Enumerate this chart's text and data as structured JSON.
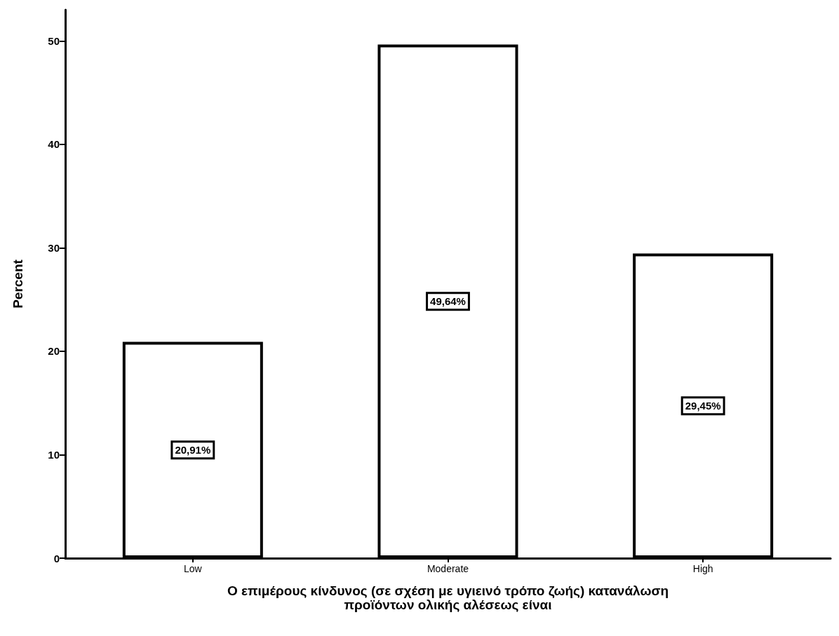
{
  "chart_data": {
    "type": "bar",
    "xlabel": "Ο επιμέρους κίνδυνος (σε σχέση με υγιεινό τρόπο ζωής) κατανάλωση\nπροϊόντων ολικής αλέσεως είναι",
    "ylabel": "Percent",
    "categories": [
      "Low",
      "Moderate",
      "High"
    ],
    "values": [
      20.91,
      49.64,
      29.45
    ],
    "value_labels": [
      "20,91%",
      "49,64%",
      "29,45%"
    ],
    "color": "#ffffff",
    "ylim": [
      0,
      53
    ],
    "yticks": [
      0,
      10,
      20,
      30,
      40,
      50
    ],
    "grid": false
  }
}
